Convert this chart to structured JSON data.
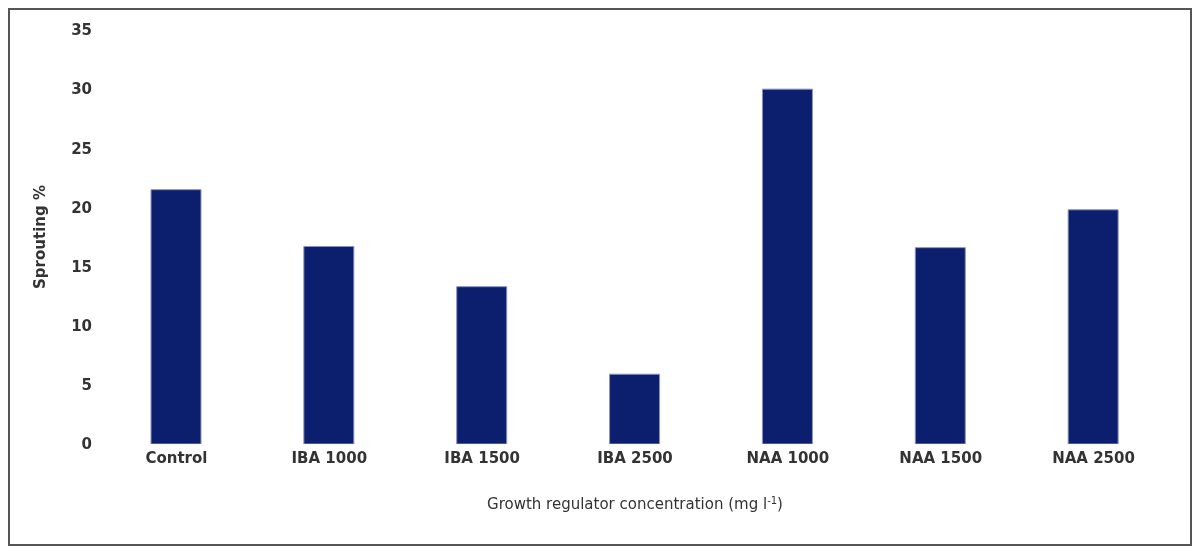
{
  "chart_data": {
    "type": "bar",
    "xlabel": "Growth regulator concentration (mg l$^{-1}$)",
    "ylabel": "Sprouting %",
    "categories": [
      "Control",
      "IBA 1000",
      "IBA 1500",
      "IBA 2500",
      "NAA 1000",
      "NAA 1500",
      "NAA 2500"
    ],
    "values": [
      21.5,
      16.7,
      13.3,
      5.9,
      30,
      16.6,
      19.8
    ],
    "color": "#0c1f6e",
    "ylim": [
      0,
      35
    ],
    "yticks": [
      0,
      5,
      10,
      15,
      20,
      25,
      30,
      35
    ]
  }
}
